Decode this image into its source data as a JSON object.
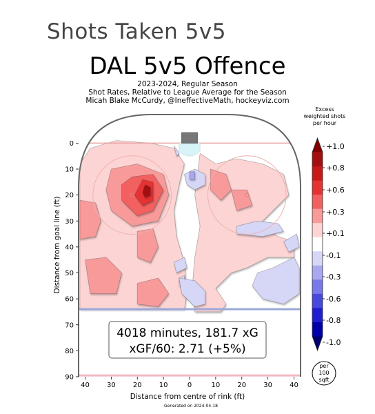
{
  "header": {
    "page_title": "Shots Taken 5v5"
  },
  "chart_data": {
    "type": "heatmap",
    "title": "DAL 5v5 Offence",
    "subtitle_lines": [
      "2023-2024, Regular Season",
      "Shot Rates, Relative to League Average for the Season",
      "Micah Blake McCurdy, @IneffectiveMath, hockeyviz.com"
    ],
    "xlabel": "Distance from centre of rink (ft)",
    "ylabel": "Distance from goal line (ft)",
    "x_ticks": [
      "40",
      "30",
      "20",
      "10",
      "0",
      "10",
      "20",
      "30",
      "40"
    ],
    "x_tick_values": [
      -40,
      -30,
      -20,
      -10,
      0,
      10,
      20,
      30,
      40
    ],
    "y_ticks": [
      "0",
      "10",
      "20",
      "30",
      "40",
      "50",
      "60",
      "70",
      "80",
      "90"
    ],
    "y_tick_values": [
      0,
      10,
      20,
      30,
      40,
      50,
      60,
      70,
      80,
      90
    ],
    "xlim": [
      -42.5,
      42.5
    ],
    "ylim": [
      -11,
      90
    ],
    "summary_line1": "4018 minutes, 181.7 xG",
    "summary_line2": "xGF/60: 2.71 (+5%)",
    "colorbar": {
      "title_lines": [
        "Excess",
        "weighted shots",
        "per hour"
      ],
      "ticks": [
        "+1.0",
        "+0.8",
        "+0.6",
        "+0.3",
        "+0.1",
        "-0.1",
        "-0.3",
        "-0.6",
        "-0.8",
        "-1.0"
      ],
      "colors": [
        "#7f0000",
        "#a50e0e",
        "#c81818",
        "#e63232",
        "#f26060",
        "#f89a9a",
        "#fdd4d4",
        "#ffffff",
        "#d6d6f7",
        "#a8a8f0",
        "#7878e8",
        "#4848dc",
        "#1e1ed0",
        "#0000a8",
        "#00006e"
      ]
    },
    "unit_badge_lines": [
      "per",
      "100",
      "sqft"
    ],
    "footer": "Generated on 2024-04-18",
    "regions": [
      {
        "sign": "pos",
        "level": 0.15,
        "points": [
          [
            -42,
            8
          ],
          [
            -38,
            2
          ],
          [
            -28,
            -1
          ],
          [
            -15,
            0
          ],
          [
            -6,
            2
          ],
          [
            -2,
            8
          ],
          [
            -4,
            16
          ],
          [
            -6,
            26
          ],
          [
            -5,
            36
          ],
          [
            -2,
            46
          ],
          [
            -1,
            58
          ],
          [
            -2,
            64
          ],
          [
            -14,
            64
          ],
          [
            -30,
            64
          ],
          [
            -42,
            64
          ]
        ]
      },
      {
        "sign": "pos",
        "level": 0.15,
        "points": [
          [
            4,
            4
          ],
          [
            10,
            8
          ],
          [
            18,
            6
          ],
          [
            28,
            8
          ],
          [
            36,
            12
          ],
          [
            38,
            20
          ],
          [
            32,
            26
          ],
          [
            26,
            32
          ],
          [
            34,
            36
          ],
          [
            40,
            38
          ],
          [
            40,
            44
          ],
          [
            30,
            44
          ],
          [
            22,
            48
          ],
          [
            16,
            50
          ],
          [
            10,
            56
          ],
          [
            14,
            62
          ],
          [
            12,
            65
          ],
          [
            2,
            65
          ],
          [
            1,
            56
          ],
          [
            2,
            44
          ],
          [
            4,
            32
          ],
          [
            2,
            20
          ]
        ]
      },
      {
        "sign": "pos",
        "level": 0.3,
        "points": [
          [
            -30,
            10
          ],
          [
            -20,
            8
          ],
          [
            -10,
            12
          ],
          [
            -8,
            20
          ],
          [
            -12,
            30
          ],
          [
            -22,
            32
          ],
          [
            -30,
            26
          ],
          [
            -32,
            18
          ]
        ]
      },
      {
        "sign": "pos",
        "level": 0.45,
        "points": [
          [
            -22,
            13
          ],
          [
            -14,
            12
          ],
          [
            -10,
            18
          ],
          [
            -14,
            26
          ],
          [
            -20,
            28
          ],
          [
            -26,
            22
          ],
          [
            -26,
            16
          ]
        ]
      },
      {
        "sign": "pos",
        "level": 0.6,
        "points": [
          [
            -18,
            14
          ],
          [
            -14,
            15
          ],
          [
            -14,
            22
          ],
          [
            -18,
            24
          ],
          [
            -21,
            20
          ]
        ]
      },
      {
        "sign": "pos",
        "level": 0.8,
        "points": [
          [
            -17,
            16
          ],
          [
            -15,
            17
          ],
          [
            -15,
            20
          ],
          [
            -17,
            21
          ],
          [
            -18,
            19
          ]
        ]
      },
      {
        "sign": "pos",
        "level": 0.3,
        "points": [
          [
            -42,
            22
          ],
          [
            -36,
            23
          ],
          [
            -34,
            30
          ],
          [
            -36,
            36
          ],
          [
            -42,
            37
          ]
        ]
      },
      {
        "sign": "pos",
        "level": 0.3,
        "points": [
          [
            -20,
            34
          ],
          [
            -14,
            33
          ],
          [
            -12,
            40
          ],
          [
            -15,
            46
          ],
          [
            -20,
            44
          ]
        ]
      },
      {
        "sign": "pos",
        "level": 0.3,
        "points": [
          [
            -40,
            45
          ],
          [
            -32,
            44
          ],
          [
            -26,
            50
          ],
          [
            -28,
            58
          ],
          [
            -38,
            58
          ]
        ]
      },
      {
        "sign": "pos",
        "level": 0.3,
        "points": [
          [
            -20,
            54
          ],
          [
            -12,
            52
          ],
          [
            -8,
            58
          ],
          [
            -12,
            63
          ],
          [
            -20,
            62
          ]
        ]
      },
      {
        "sign": "pos",
        "level": 0.3,
        "points": [
          [
            8,
            10
          ],
          [
            14,
            12
          ],
          [
            16,
            18
          ],
          [
            12,
            22
          ],
          [
            8,
            18
          ]
        ]
      },
      {
        "sign": "pos",
        "level": 0.3,
        "points": [
          [
            16,
            18
          ],
          [
            22,
            18
          ],
          [
            24,
            24
          ],
          [
            18,
            26
          ]
        ]
      },
      {
        "sign": "neg",
        "level": 0.1,
        "points": [
          [
            -2,
            12
          ],
          [
            2,
            10
          ],
          [
            6,
            12
          ],
          [
            6,
            16
          ],
          [
            2,
            18
          ],
          [
            -1,
            16
          ]
        ]
      },
      {
        "sign": "neg",
        "level": 0.3,
        "points": [
          [
            0,
            11
          ],
          [
            2,
            11
          ],
          [
            2,
            14
          ],
          [
            0,
            14
          ]
        ]
      },
      {
        "sign": "neg",
        "level": 0.1,
        "points": [
          [
            18,
            32
          ],
          [
            26,
            30
          ],
          [
            34,
            31
          ],
          [
            36,
            34
          ],
          [
            28,
            36
          ],
          [
            18,
            35
          ]
        ]
      },
      {
        "sign": "neg",
        "level": 0.1,
        "points": [
          [
            36,
            38
          ],
          [
            41,
            35
          ],
          [
            42,
            40
          ],
          [
            38,
            42
          ]
        ]
      },
      {
        "sign": "neg",
        "level": 0.15,
        "points": [
          [
            -5,
            5
          ],
          [
            -4,
            4
          ],
          [
            -6,
            1
          ]
        ]
      },
      {
        "sign": "neg",
        "level": 0.1,
        "points": [
          [
            -6,
            46
          ],
          [
            -2,
            44
          ],
          [
            -1,
            48
          ],
          [
            -5,
            50
          ]
        ]
      },
      {
        "sign": "neg",
        "level": 0.1,
        "points": [
          [
            -4,
            52
          ],
          [
            -2,
            51
          ],
          [
            -2,
            56
          ],
          [
            -4,
            55
          ]
        ]
      },
      {
        "sign": "neg",
        "level": 0.15,
        "points": [
          [
            -4,
            52
          ],
          [
            2,
            53
          ],
          [
            6,
            57
          ],
          [
            6,
            62
          ],
          [
            2,
            63
          ],
          [
            -3,
            58
          ]
        ]
      },
      {
        "sign": "neg",
        "level": 0.15,
        "points": [
          [
            26,
            50
          ],
          [
            32,
            48
          ],
          [
            40,
            44
          ],
          [
            42,
            48
          ],
          [
            42,
            58
          ],
          [
            36,
            62
          ],
          [
            28,
            60
          ],
          [
            24,
            55
          ]
        ]
      }
    ]
  }
}
